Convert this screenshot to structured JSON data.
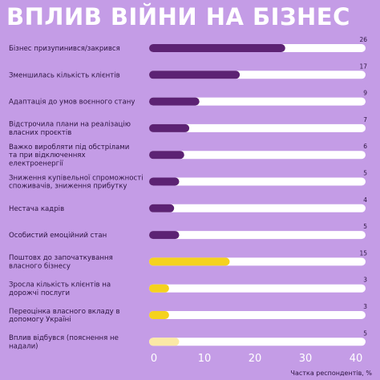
{
  "colors": {
    "background": "#c49ce6",
    "track": "#ffffff",
    "bar_purple": "#5c2273",
    "bar_yellow": "#f5d21e",
    "bar_light_yellow": "#fbe9a6",
    "title": "#ffffff"
  },
  "chart_data": {
    "type": "bar",
    "orientation": "horizontal",
    "title": "ВПЛИВ ВІЙНИ НА БІЗНЕС",
    "xlabel": "Частка респондентів, %",
    "ylabel": "",
    "xlim": [
      0,
      40
    ],
    "ticks": [
      "0",
      "10",
      "20",
      "30",
      "40"
    ],
    "grid": false,
    "categories": [
      [
        "Бізнес призупинився/закрився"
      ],
      [
        "Зменшилась кількість клієнтів"
      ],
      [
        "Адаптація до умов воєнного стану"
      ],
      [
        "Відстрочила плани на реалізацію",
        "власних проєктів"
      ],
      [
        "Важко виробляти під обстрілами",
        "та при відключеннях",
        "електроенергії"
      ],
      [
        "Зниження купівельної спроможності",
        "споживачів, зниження прибутку"
      ],
      [
        "Нестача кадрів"
      ],
      [
        "Особистий емоційний стан"
      ],
      [
        "Поштовх до започаткування",
        "власного бізнесу"
      ],
      [
        "Зросла кількість клієнтів на",
        "дорожчі послуги"
      ],
      [
        "Переоцінка власного вкладу в",
        "допомогу Україні"
      ],
      [
        "Вплив відбувся (пояснення не",
        "надали)"
      ]
    ],
    "values": [
      26,
      17,
      9,
      7,
      6,
      5,
      4,
      5,
      15,
      3,
      3,
      5
    ],
    "value_labels": [
      "26",
      "17",
      "9",
      "7",
      "6",
      "5",
      "4",
      "5",
      "15",
      "3",
      "3",
      "5"
    ],
    "bar_colors": [
      "purple",
      "purple",
      "purple",
      "purple",
      "purple",
      "purple",
      "purple",
      "purple",
      "yellow",
      "yellow",
      "yellow",
      "light_yellow"
    ]
  }
}
